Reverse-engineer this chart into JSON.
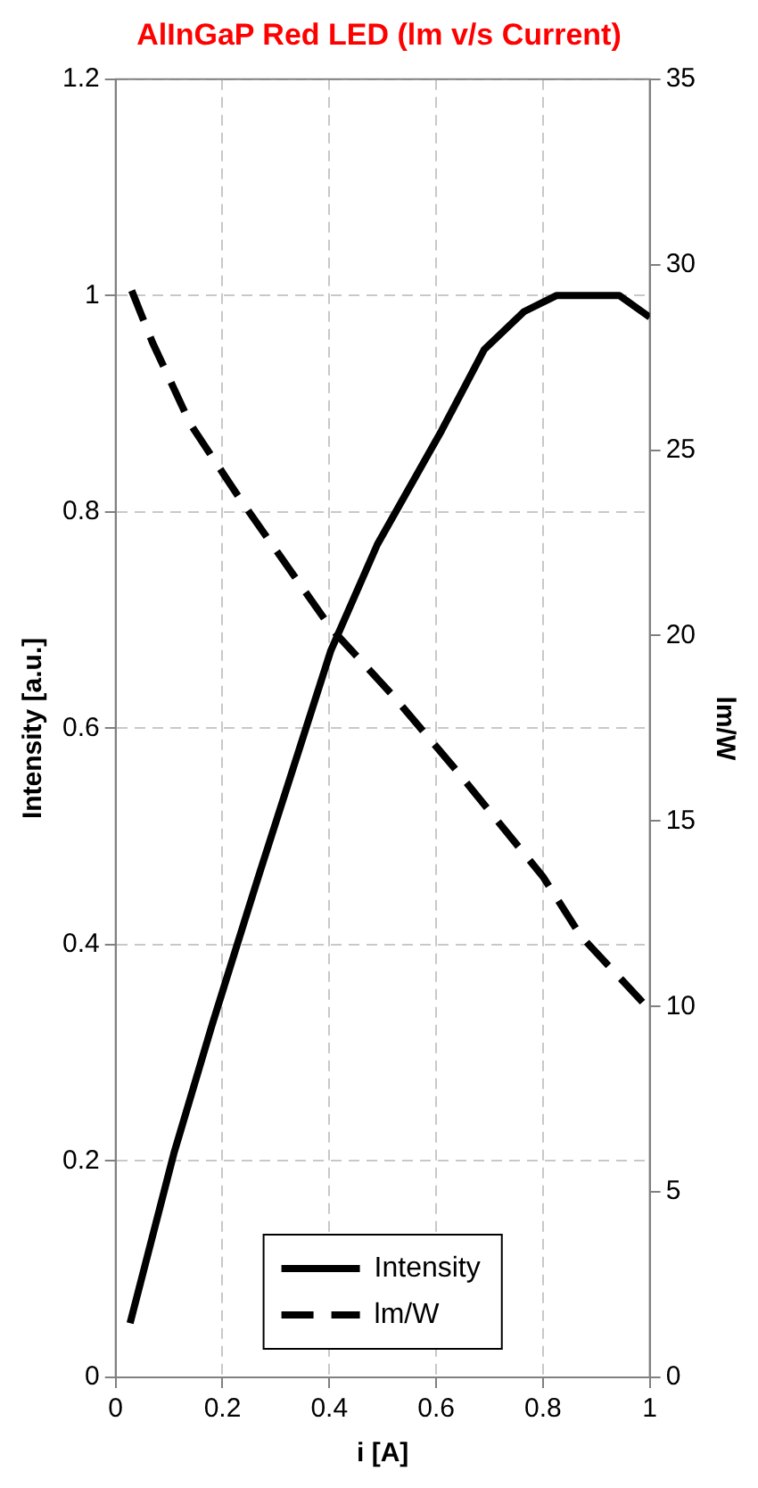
{
  "chart_data": {
    "type": "line",
    "title": "AlInGaP Red LED (lm v/s Current)",
    "xlabel": "i [A]",
    "ylabel": "Intensity [a.u.]",
    "y2label": "lm/W",
    "xlim": [
      0,
      1
    ],
    "xticks": [
      0,
      0.2,
      0.4,
      0.6,
      0.8,
      1
    ],
    "ylim": [
      0,
      1.2
    ],
    "yticks": [
      0,
      0.2,
      0.4,
      0.6,
      0.8,
      1,
      1.2
    ],
    "y2lim": [
      0,
      35
    ],
    "y2ticks": [
      0,
      5,
      10,
      15,
      20,
      25,
      30,
      35
    ],
    "grid": true,
    "legend": "bottom",
    "marker": "none",
    "series": [
      {
        "name": "Intensity",
        "color": "#000000",
        "line_style": "solid",
        "x": [
          0.027,
          0.109,
          0.18,
          0.268,
          0.403,
          0.49,
          0.61,
          0.69,
          0.764,
          0.825,
          0.943,
          1.0
        ],
        "values": [
          0.05,
          0.207,
          0.325,
          0.464,
          0.672,
          0.77,
          0.875,
          0.95,
          0.985,
          1.0,
          1.0,
          0.98
        ]
      },
      {
        "name": "lm/W",
        "color": "#000000",
        "line_style": "dashed",
        "axis": "y2",
        "x": [
          0.03,
          0.069,
          0.14,
          0.232,
          0.403,
          0.518,
          0.636,
          0.8,
          0.871,
          0.994
        ],
        "values": [
          29.3,
          27.9,
          25.7,
          23.7,
          20.2,
          18.4,
          16.4,
          13.5,
          11.9,
          10.0
        ]
      }
    ]
  }
}
